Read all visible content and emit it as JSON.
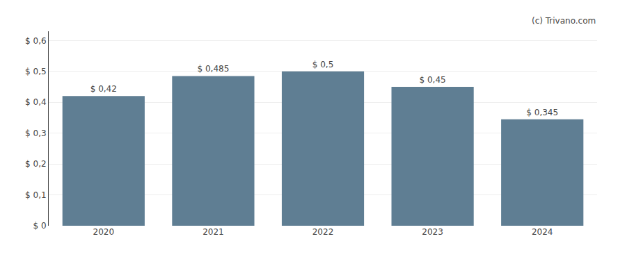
{
  "chart_data": {
    "type": "bar",
    "categories": [
      "2020",
      "2021",
      "2022",
      "2023",
      "2024"
    ],
    "values": [
      0.42,
      0.485,
      0.5,
      0.45,
      0.345
    ],
    "value_labels": [
      "$ 0,42",
      "$ 0,485",
      "$ 0,5",
      "$ 0,45",
      "$ 0,345"
    ],
    "data_labels": true,
    "color": "#5f7e93",
    "ylim": [
      0,
      0.63
    ],
    "yticks": [
      {
        "value": 0.0,
        "label": "$ 0"
      },
      {
        "value": 0.1,
        "label": "$ 0,1"
      },
      {
        "value": 0.2,
        "label": "$ 0,2"
      },
      {
        "value": 0.3,
        "label": "$ 0,3"
      },
      {
        "value": 0.4,
        "label": "$ 0,4"
      },
      {
        "value": 0.5,
        "label": "$ 0,5"
      },
      {
        "value": 0.6,
        "label": "$ 0,6"
      }
    ],
    "grid": true,
    "annotations": [
      "(c) Trivano.com"
    ]
  }
}
